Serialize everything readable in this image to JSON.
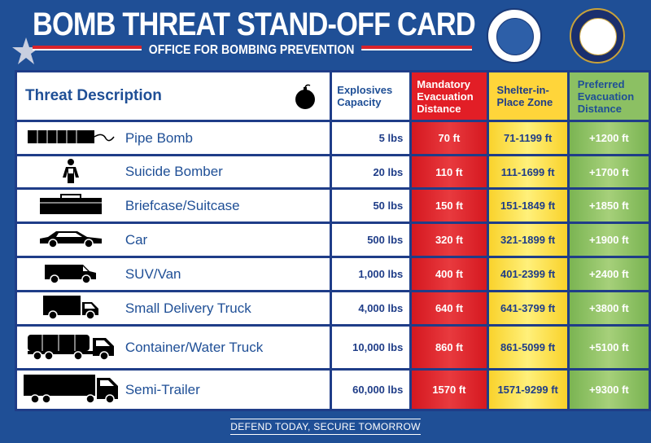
{
  "header": {
    "title": "BOMB THREAT STAND-OFF CARD",
    "subtitle": "OFFICE FOR BOMBING PREVENTION"
  },
  "table": {
    "headers": {
      "description": "Threat Description",
      "capacity": "Explosives Capacity",
      "mandatory": "Mandatory Evacuation Distance",
      "shelter": "Shelter-in-Place Zone",
      "preferred": "Preferred Evacuation Distance"
    },
    "rows": [
      {
        "icon": "pipe-bomb-icon",
        "name": "Pipe Bomb",
        "capacity": "5 lbs",
        "mandatory": "70 ft",
        "shelter": "71-1199 ft",
        "preferred": "+1200 ft"
      },
      {
        "icon": "suicide-bomber-icon",
        "name": "Suicide Bomber",
        "capacity": "20 lbs",
        "mandatory": "110 ft",
        "shelter": "111-1699 ft",
        "preferred": "+1700 ft"
      },
      {
        "icon": "briefcase-icon",
        "name": "Briefcase/Suitcase",
        "capacity": "50 lbs",
        "mandatory": "150 ft",
        "shelter": "151-1849 ft",
        "preferred": "+1850 ft"
      },
      {
        "icon": "car-icon",
        "name": "Car",
        "capacity": "500 lbs",
        "mandatory": "320 ft",
        "shelter": "321-1899 ft",
        "preferred": "+1900 ft"
      },
      {
        "icon": "van-icon",
        "name": "SUV/Van",
        "capacity": "1,000 lbs",
        "mandatory": "400 ft",
        "shelter": "401-2399 ft",
        "preferred": "+2400 ft"
      },
      {
        "icon": "delivery-truck-icon",
        "name": "Small Delivery Truck",
        "capacity": "4,000 lbs",
        "mandatory": "640 ft",
        "shelter": "641-3799 ft",
        "preferred": "+3800 ft"
      },
      {
        "icon": "tanker-truck-icon",
        "name": "Container/Water Truck",
        "capacity": "10,000 lbs",
        "mandatory": "860 ft",
        "shelter": "861-5099 ft",
        "preferred": "+5100 ft"
      },
      {
        "icon": "semi-trailer-icon",
        "name": "Semi-Trailer",
        "capacity": "60,000 lbs",
        "mandatory": "1570 ft",
        "shelter": "1571-9299 ft",
        "preferred": "+9300 ft"
      }
    ]
  },
  "footer": {
    "tagline": "DEFEND TODAY, SECURE TOMORROW"
  }
}
